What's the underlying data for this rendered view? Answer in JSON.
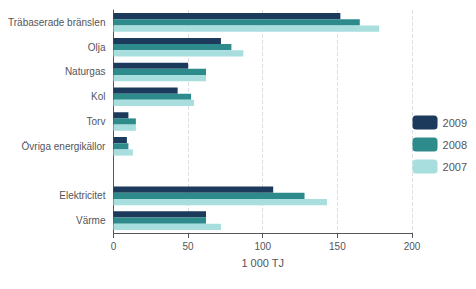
{
  "chart_data": {
    "type": "bar",
    "orientation": "horizontal",
    "categories": [
      "Träbaserade bränslen",
      "Olja",
      "Naturgas",
      "Kol",
      "Torv",
      "Övriga energikällor",
      null,
      "Elektricitet",
      "Värme"
    ],
    "series": [
      {
        "name": "2009",
        "color": "#1b3a5c",
        "values": [
          152,
          72,
          50,
          43,
          10,
          9,
          0,
          107,
          62
        ]
      },
      {
        "name": "2008",
        "color": "#2e8b8b",
        "values": [
          165,
          79,
          62,
          52,
          15,
          10,
          0,
          128,
          62
        ]
      },
      {
        "name": "2007",
        "color": "#a8dede",
        "values": [
          178,
          87,
          62,
          54,
          15,
          13,
          0,
          143,
          72
        ]
      }
    ],
    "xlabel": "1 000 TJ",
    "xlim": [
      0,
      200
    ],
    "xticks": [
      0,
      50,
      100,
      150,
      200
    ],
    "grid": true,
    "legend": "right"
  }
}
